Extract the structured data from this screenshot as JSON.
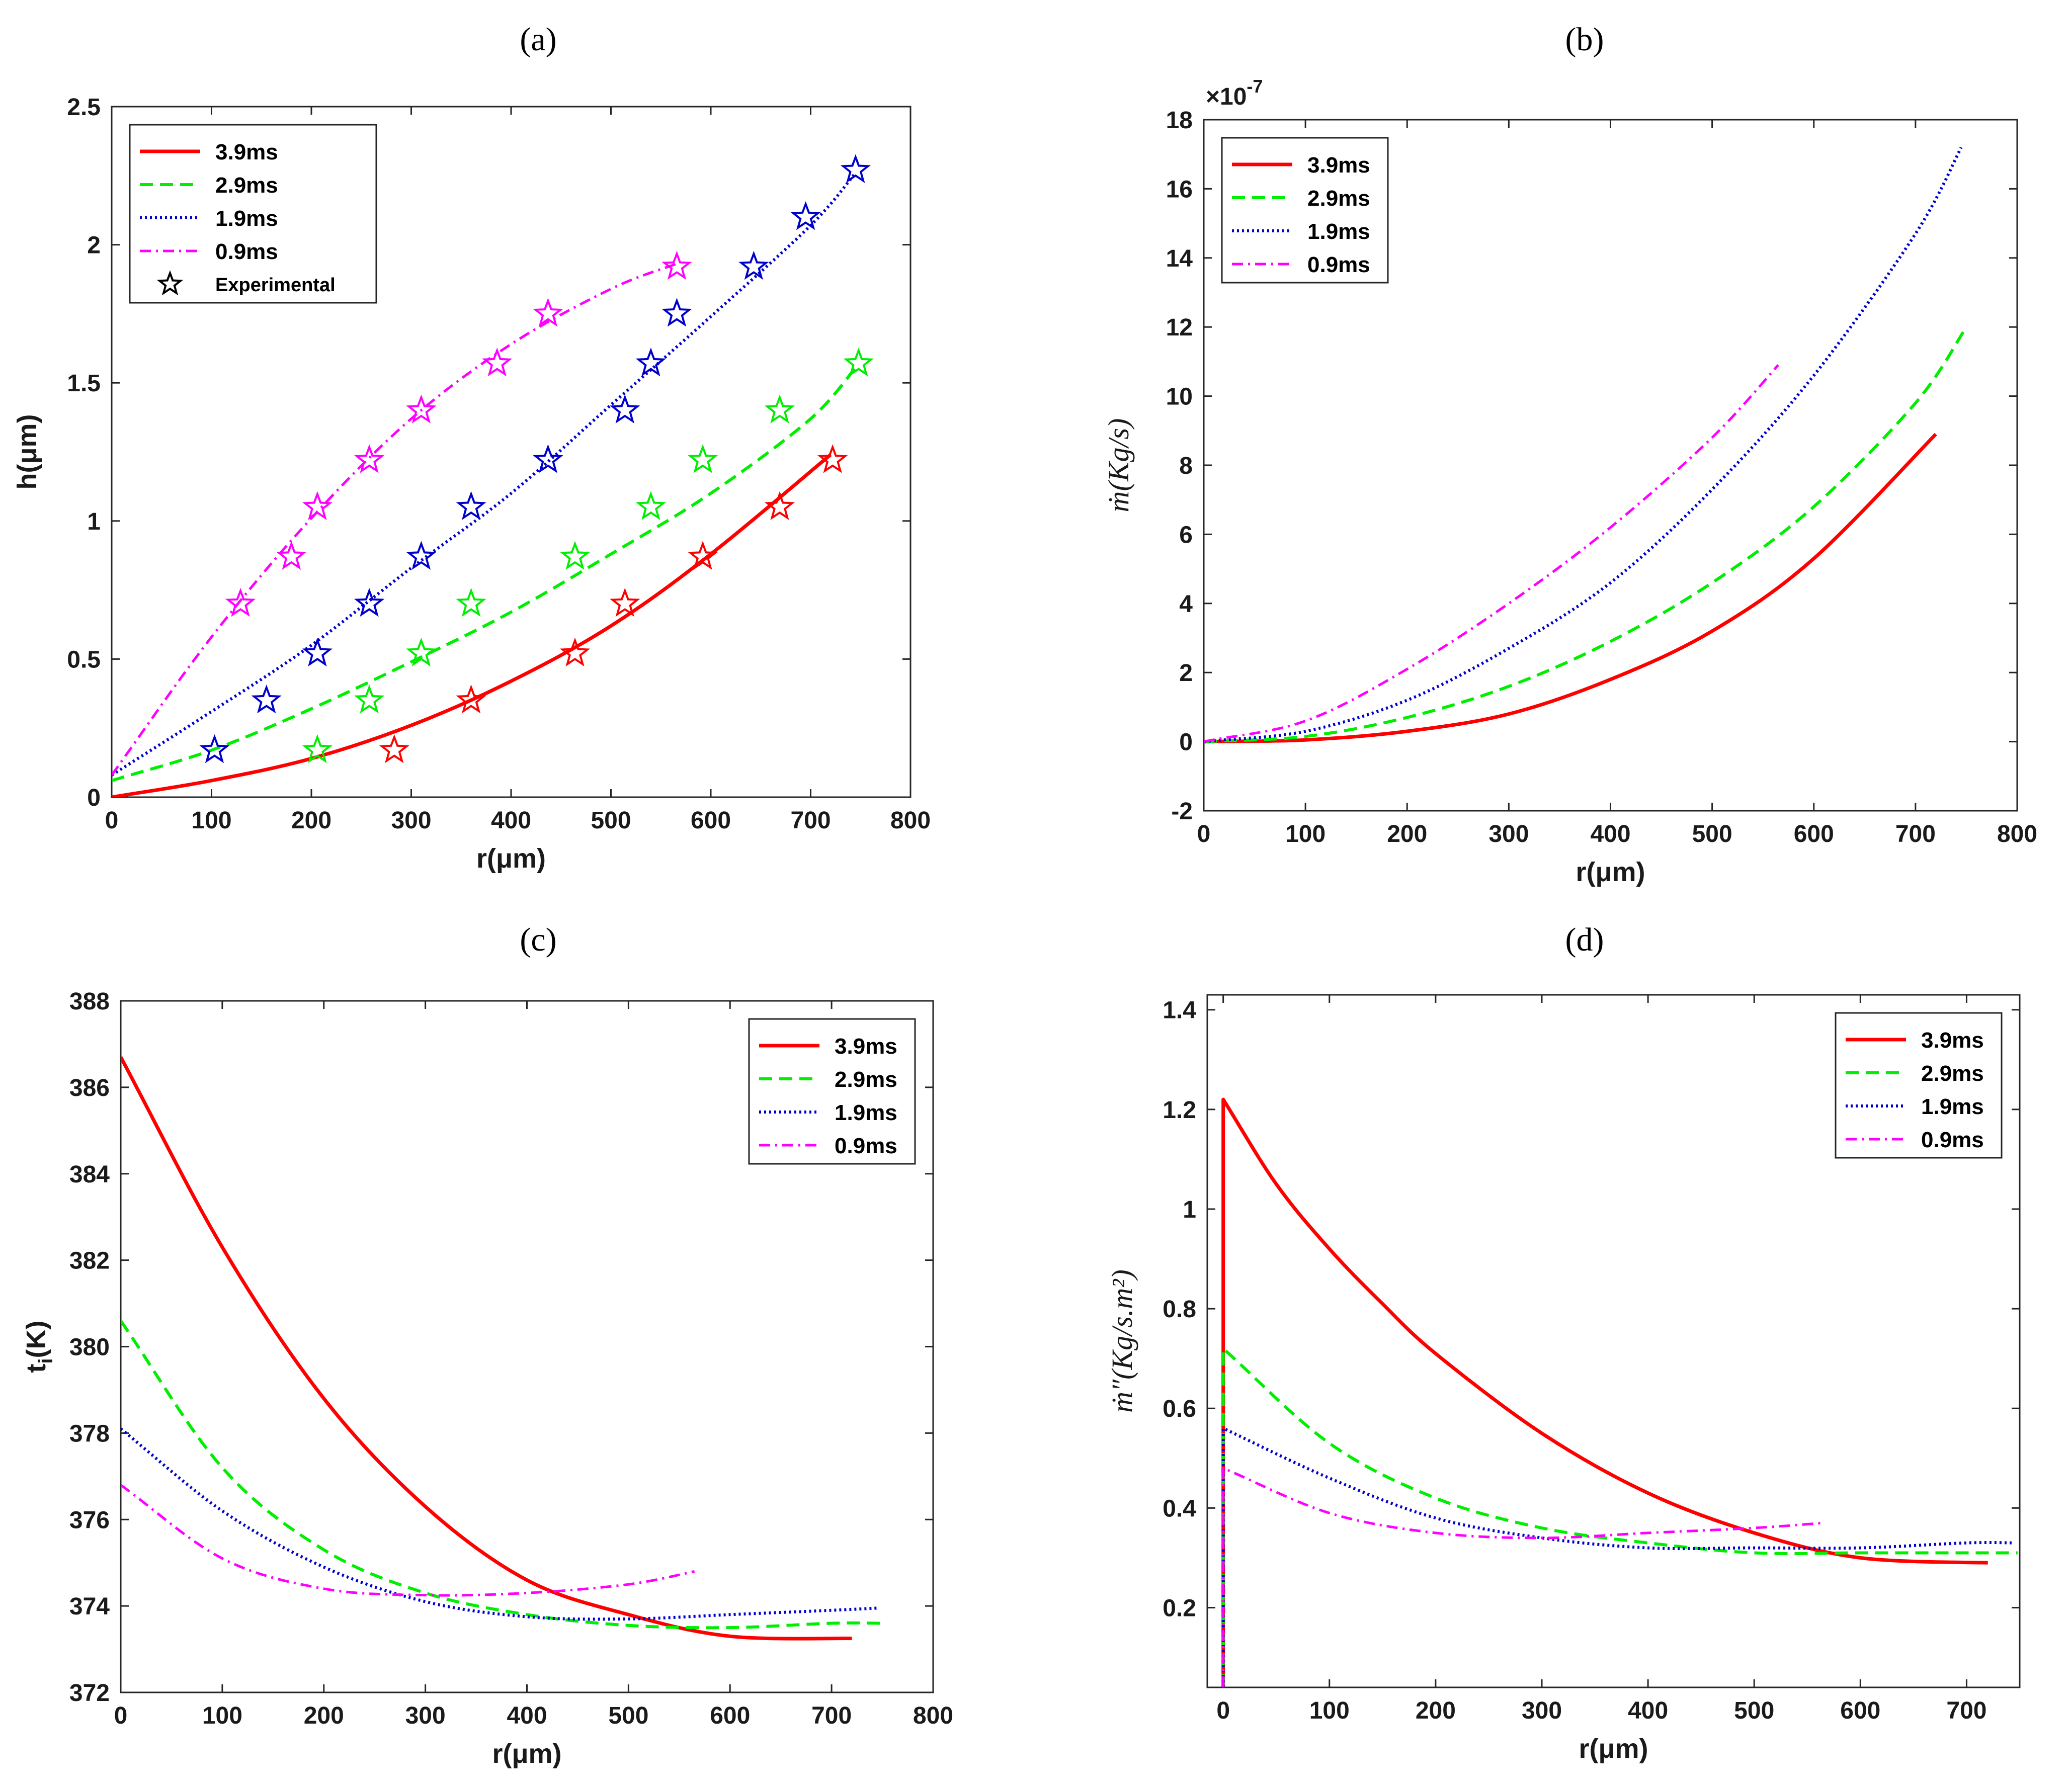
{
  "chart_data": [
    {
      "id": "a",
      "panel_label": "(a)",
      "type": "line",
      "xlabel": "r(μm)",
      "ylabel": "h(μm)",
      "xlim": [
        0,
        800
      ],
      "ylim": [
        0,
        2.5
      ],
      "xticks": [
        "0",
        "100",
        "200",
        "300",
        "400",
        "500",
        "600",
        "700",
        "800"
      ],
      "yticks": [
        "0",
        "0.5",
        "1",
        "1.5",
        "2",
        "2.5"
      ],
      "legend_position": "top-left",
      "series": [
        {
          "name": "3.9ms",
          "color": "#ff0000",
          "style": "solid",
          "x": [
            0,
            100,
            200,
            300,
            400,
            500,
            600,
            720
          ],
          "y": [
            0.0,
            0.06,
            0.14,
            0.26,
            0.42,
            0.62,
            0.88,
            1.24
          ]
        },
        {
          "name": "2.9ms",
          "color": "#00ee00",
          "style": "dashed",
          "x": [
            0,
            100,
            200,
            300,
            400,
            500,
            600,
            700,
            748
          ],
          "y": [
            0.06,
            0.17,
            0.32,
            0.49,
            0.67,
            0.88,
            1.1,
            1.37,
            1.57
          ]
        },
        {
          "name": "1.9ms",
          "color": "#0000cc",
          "style": "dotted",
          "x": [
            0,
            100,
            200,
            300,
            400,
            500,
            600,
            700,
            745
          ],
          "y": [
            0.08,
            0.31,
            0.55,
            0.83,
            1.1,
            1.42,
            1.74,
            2.07,
            2.26
          ]
        },
        {
          "name": "0.9ms",
          "color": "#ff00ff",
          "style": "dashdot",
          "x": [
            0,
            100,
            200,
            300,
            400,
            500,
            565
          ],
          "y": [
            0.08,
            0.58,
            1.01,
            1.37,
            1.64,
            1.84,
            1.93
          ]
        }
      ],
      "experimental": {
        "name": "Experimental",
        "points": [
          {
            "series": "3.9ms",
            "x": [
              283,
              360,
              464,
              514,
              592,
              669,
              722
            ],
            "y": [
              0.17,
              0.35,
              0.52,
              0.7,
              0.87,
              1.05,
              1.22
            ]
          },
          {
            "series": "2.9ms",
            "x": [
              206,
              258,
              310,
              360,
              464,
              540,
              592,
              669,
              748
            ],
            "y": [
              0.17,
              0.35,
              0.52,
              0.7,
              0.87,
              1.05,
              1.22,
              1.4,
              1.57
            ]
          },
          {
            "series": "1.9ms",
            "x": [
              103,
              155,
              206,
              258,
              310,
              360,
              437,
              514,
              540,
              566,
              643,
              695,
              745
            ],
            "y": [
              0.17,
              0.35,
              0.52,
              0.7,
              0.87,
              1.05,
              1.22,
              1.4,
              1.57,
              1.75,
              1.92,
              2.1,
              2.27
            ]
          },
          {
            "series": "0.9ms",
            "x": [
              129,
              180,
              206,
              258,
              310,
              386,
              437,
              566
            ],
            "y": [
              0.7,
              0.87,
              1.05,
              1.22,
              1.4,
              1.57,
              1.75,
              1.92
            ]
          }
        ]
      }
    },
    {
      "id": "b",
      "panel_label": "(b)",
      "type": "line",
      "xlabel": "r(μm)",
      "ylabel": "ṁ(Kg/s)",
      "exponent_label": "×10",
      "exponent_power": "-7",
      "xlim": [
        0,
        800
      ],
      "ylim": [
        -2,
        18
      ],
      "xticks": [
        "0",
        "100",
        "200",
        "300",
        "400",
        "500",
        "600",
        "700",
        "800"
      ],
      "yticks": [
        "-2",
        "0",
        "2",
        "4",
        "6",
        "8",
        "10",
        "12",
        "14",
        "16",
        "18"
      ],
      "legend_position": "top-left",
      "series": [
        {
          "name": "3.9ms",
          "color": "#ff0000",
          "style": "solid",
          "x": [
            0,
            100,
            200,
            300,
            400,
            500,
            600,
            720
          ],
          "y": [
            0,
            0.05,
            0.3,
            0.8,
            1.8,
            3.2,
            5.3,
            8.9
          ]
        },
        {
          "name": "2.9ms",
          "color": "#00ee00",
          "style": "dashed",
          "x": [
            0,
            100,
            200,
            300,
            400,
            500,
            600,
            700,
            748
          ],
          "y": [
            0,
            0.15,
            0.7,
            1.6,
            2.9,
            4.6,
            6.8,
            9.8,
            11.9
          ]
        },
        {
          "name": "1.9ms",
          "color": "#0000cc",
          "style": "dotted",
          "x": [
            0,
            100,
            200,
            300,
            400,
            500,
            600,
            700,
            745
          ],
          "y": [
            0,
            0.3,
            1.2,
            2.7,
            4.6,
            7.3,
            10.6,
            14.7,
            17.2
          ]
        },
        {
          "name": "0.9ms",
          "color": "#ff00ff",
          "style": "dashdot",
          "x": [
            0,
            100,
            200,
            300,
            400,
            500,
            565
          ],
          "y": [
            0,
            0.6,
            2.1,
            4.0,
            6.2,
            8.8,
            10.9
          ]
        }
      ]
    },
    {
      "id": "c",
      "panel_label": "(c)",
      "type": "line",
      "xlabel": "r(μm)",
      "ylabel": "t",
      "ylabel_sub": "i",
      "ylabel_unit": "(K)",
      "xlim": [
        0,
        800
      ],
      "ylim": [
        372,
        388
      ],
      "xticks": [
        "0",
        "100",
        "200",
        "300",
        "400",
        "500",
        "600",
        "700",
        "800"
      ],
      "yticks": [
        "372",
        "374",
        "376",
        "378",
        "380",
        "382",
        "384",
        "386",
        "388"
      ],
      "legend_position": "top-right",
      "series": [
        {
          "name": "3.9ms",
          "color": "#ff0000",
          "style": "solid",
          "x": [
            0,
            100,
            200,
            300,
            400,
            500,
            600,
            720
          ],
          "y": [
            386.7,
            382.3,
            378.8,
            376.3,
            374.6,
            373.8,
            373.3,
            373.25
          ]
        },
        {
          "name": "2.9ms",
          "color": "#00ee00",
          "style": "dashed",
          "x": [
            0,
            100,
            200,
            300,
            400,
            500,
            600,
            700,
            748
          ],
          "y": [
            380.6,
            377.2,
            375.3,
            374.3,
            373.8,
            373.55,
            373.5,
            373.6,
            373.6
          ]
        },
        {
          "name": "1.9ms",
          "color": "#0000cc",
          "style": "dotted",
          "x": [
            0,
            100,
            200,
            300,
            400,
            500,
            600,
            700,
            745
          ],
          "y": [
            378.1,
            376.2,
            374.9,
            374.1,
            373.75,
            373.7,
            373.8,
            373.9,
            373.95
          ]
        },
        {
          "name": "0.9ms",
          "color": "#ff00ff",
          "style": "dashdot",
          "x": [
            0,
            100,
            200,
            300,
            400,
            500,
            565
          ],
          "y": [
            376.8,
            375.1,
            374.4,
            374.25,
            374.3,
            374.5,
            374.8
          ]
        }
      ]
    },
    {
      "id": "d",
      "panel_label": "(d)",
      "type": "line",
      "xlabel": "r(μm)",
      "ylabel": "ṁ″(Kg/s.m²)",
      "xlim": [
        -15,
        750
      ],
      "ylim": [
        0.04,
        1.43
      ],
      "xticks": [
        "0",
        "100",
        "200",
        "300",
        "400",
        "500",
        "600",
        "700"
      ],
      "yticks": [
        "0.2",
        "0.4",
        "0.6",
        "0.8",
        "1",
        "1.2",
        "1.4"
      ],
      "legend_position": "top-right",
      "series": [
        {
          "name": "3.9ms",
          "color": "#ff0000",
          "style": "solid",
          "x": [
            0,
            0,
            50,
            100,
            150,
            200,
            300,
            400,
            500,
            600,
            720
          ],
          "y": [
            0.04,
            1.22,
            1.05,
            0.92,
            0.81,
            0.71,
            0.55,
            0.43,
            0.35,
            0.3,
            0.29
          ]
        },
        {
          "name": "2.9ms",
          "color": "#00ee00",
          "style": "dashed",
          "x": [
            0,
            0,
            100,
            200,
            300,
            400,
            500,
            600,
            700,
            748
          ],
          "y": [
            0.04,
            0.72,
            0.53,
            0.42,
            0.36,
            0.33,
            0.31,
            0.31,
            0.31,
            0.31
          ]
        },
        {
          "name": "1.9ms",
          "color": "#0000cc",
          "style": "dotted",
          "x": [
            0,
            0,
            100,
            200,
            300,
            400,
            500,
            600,
            700,
            745
          ],
          "y": [
            0.04,
            0.56,
            0.46,
            0.38,
            0.34,
            0.32,
            0.32,
            0.32,
            0.33,
            0.33
          ]
        },
        {
          "name": "0.9ms",
          "color": "#ff00ff",
          "style": "dashdot",
          "x": [
            0,
            0,
            100,
            200,
            300,
            400,
            500,
            565
          ],
          "y": [
            0.04,
            0.48,
            0.39,
            0.35,
            0.34,
            0.35,
            0.36,
            0.37
          ]
        }
      ]
    }
  ]
}
